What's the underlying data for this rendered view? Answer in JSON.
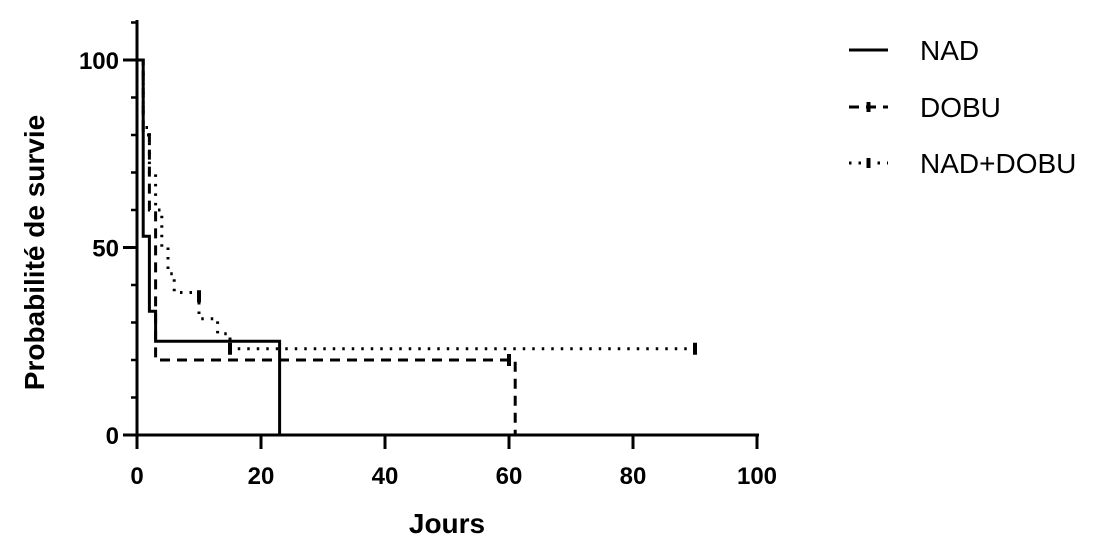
{
  "chart_data": {
    "type": "line",
    "subtype": "kaplan-meier-step",
    "title": "",
    "xlabel": "Jours",
    "ylabel": "Probabilité de survie",
    "xlim": [
      0,
      100
    ],
    "ylim": [
      0,
      100
    ],
    "x_ticks": [
      0,
      20,
      40,
      60,
      80,
      100
    ],
    "y_ticks": [
      0,
      50,
      100
    ],
    "x_tick_labels": [
      "0",
      "20",
      "40",
      "60",
      "80",
      "100"
    ],
    "y_tick_labels": [
      "0",
      "50",
      "100"
    ],
    "y_minor_step": 10,
    "legend_position": "top-right",
    "grid": false,
    "series": [
      {
        "name": "NAD",
        "line_style": "solid",
        "color": "#000000",
        "x": [
          0,
          1,
          2,
          3,
          23
        ],
        "y": [
          100,
          53,
          33,
          25,
          0
        ],
        "censored": []
      },
      {
        "name": "DOBU",
        "line_style": "dashed",
        "color": "#000000",
        "x": [
          0,
          1,
          2,
          3,
          61
        ],
        "y": [
          100,
          80,
          60,
          20,
          0
        ],
        "censored": [
          {
            "x": 60,
            "y": 20
          }
        ]
      },
      {
        "name": "NAD+DOBU",
        "line_style": "dotted",
        "color": "#000000",
        "x": [
          0,
          1,
          2,
          3,
          4,
          5,
          6,
          10,
          13,
          15
        ],
        "y": [
          100,
          82,
          70,
          60,
          50,
          43,
          38,
          31,
          27,
          23
        ],
        "censored": [
          {
            "x": 10,
            "y": 37
          },
          {
            "x": 15,
            "y": 23
          },
          {
            "x": 90,
            "y": 23
          }
        ],
        "end_x": 90
      }
    ]
  }
}
